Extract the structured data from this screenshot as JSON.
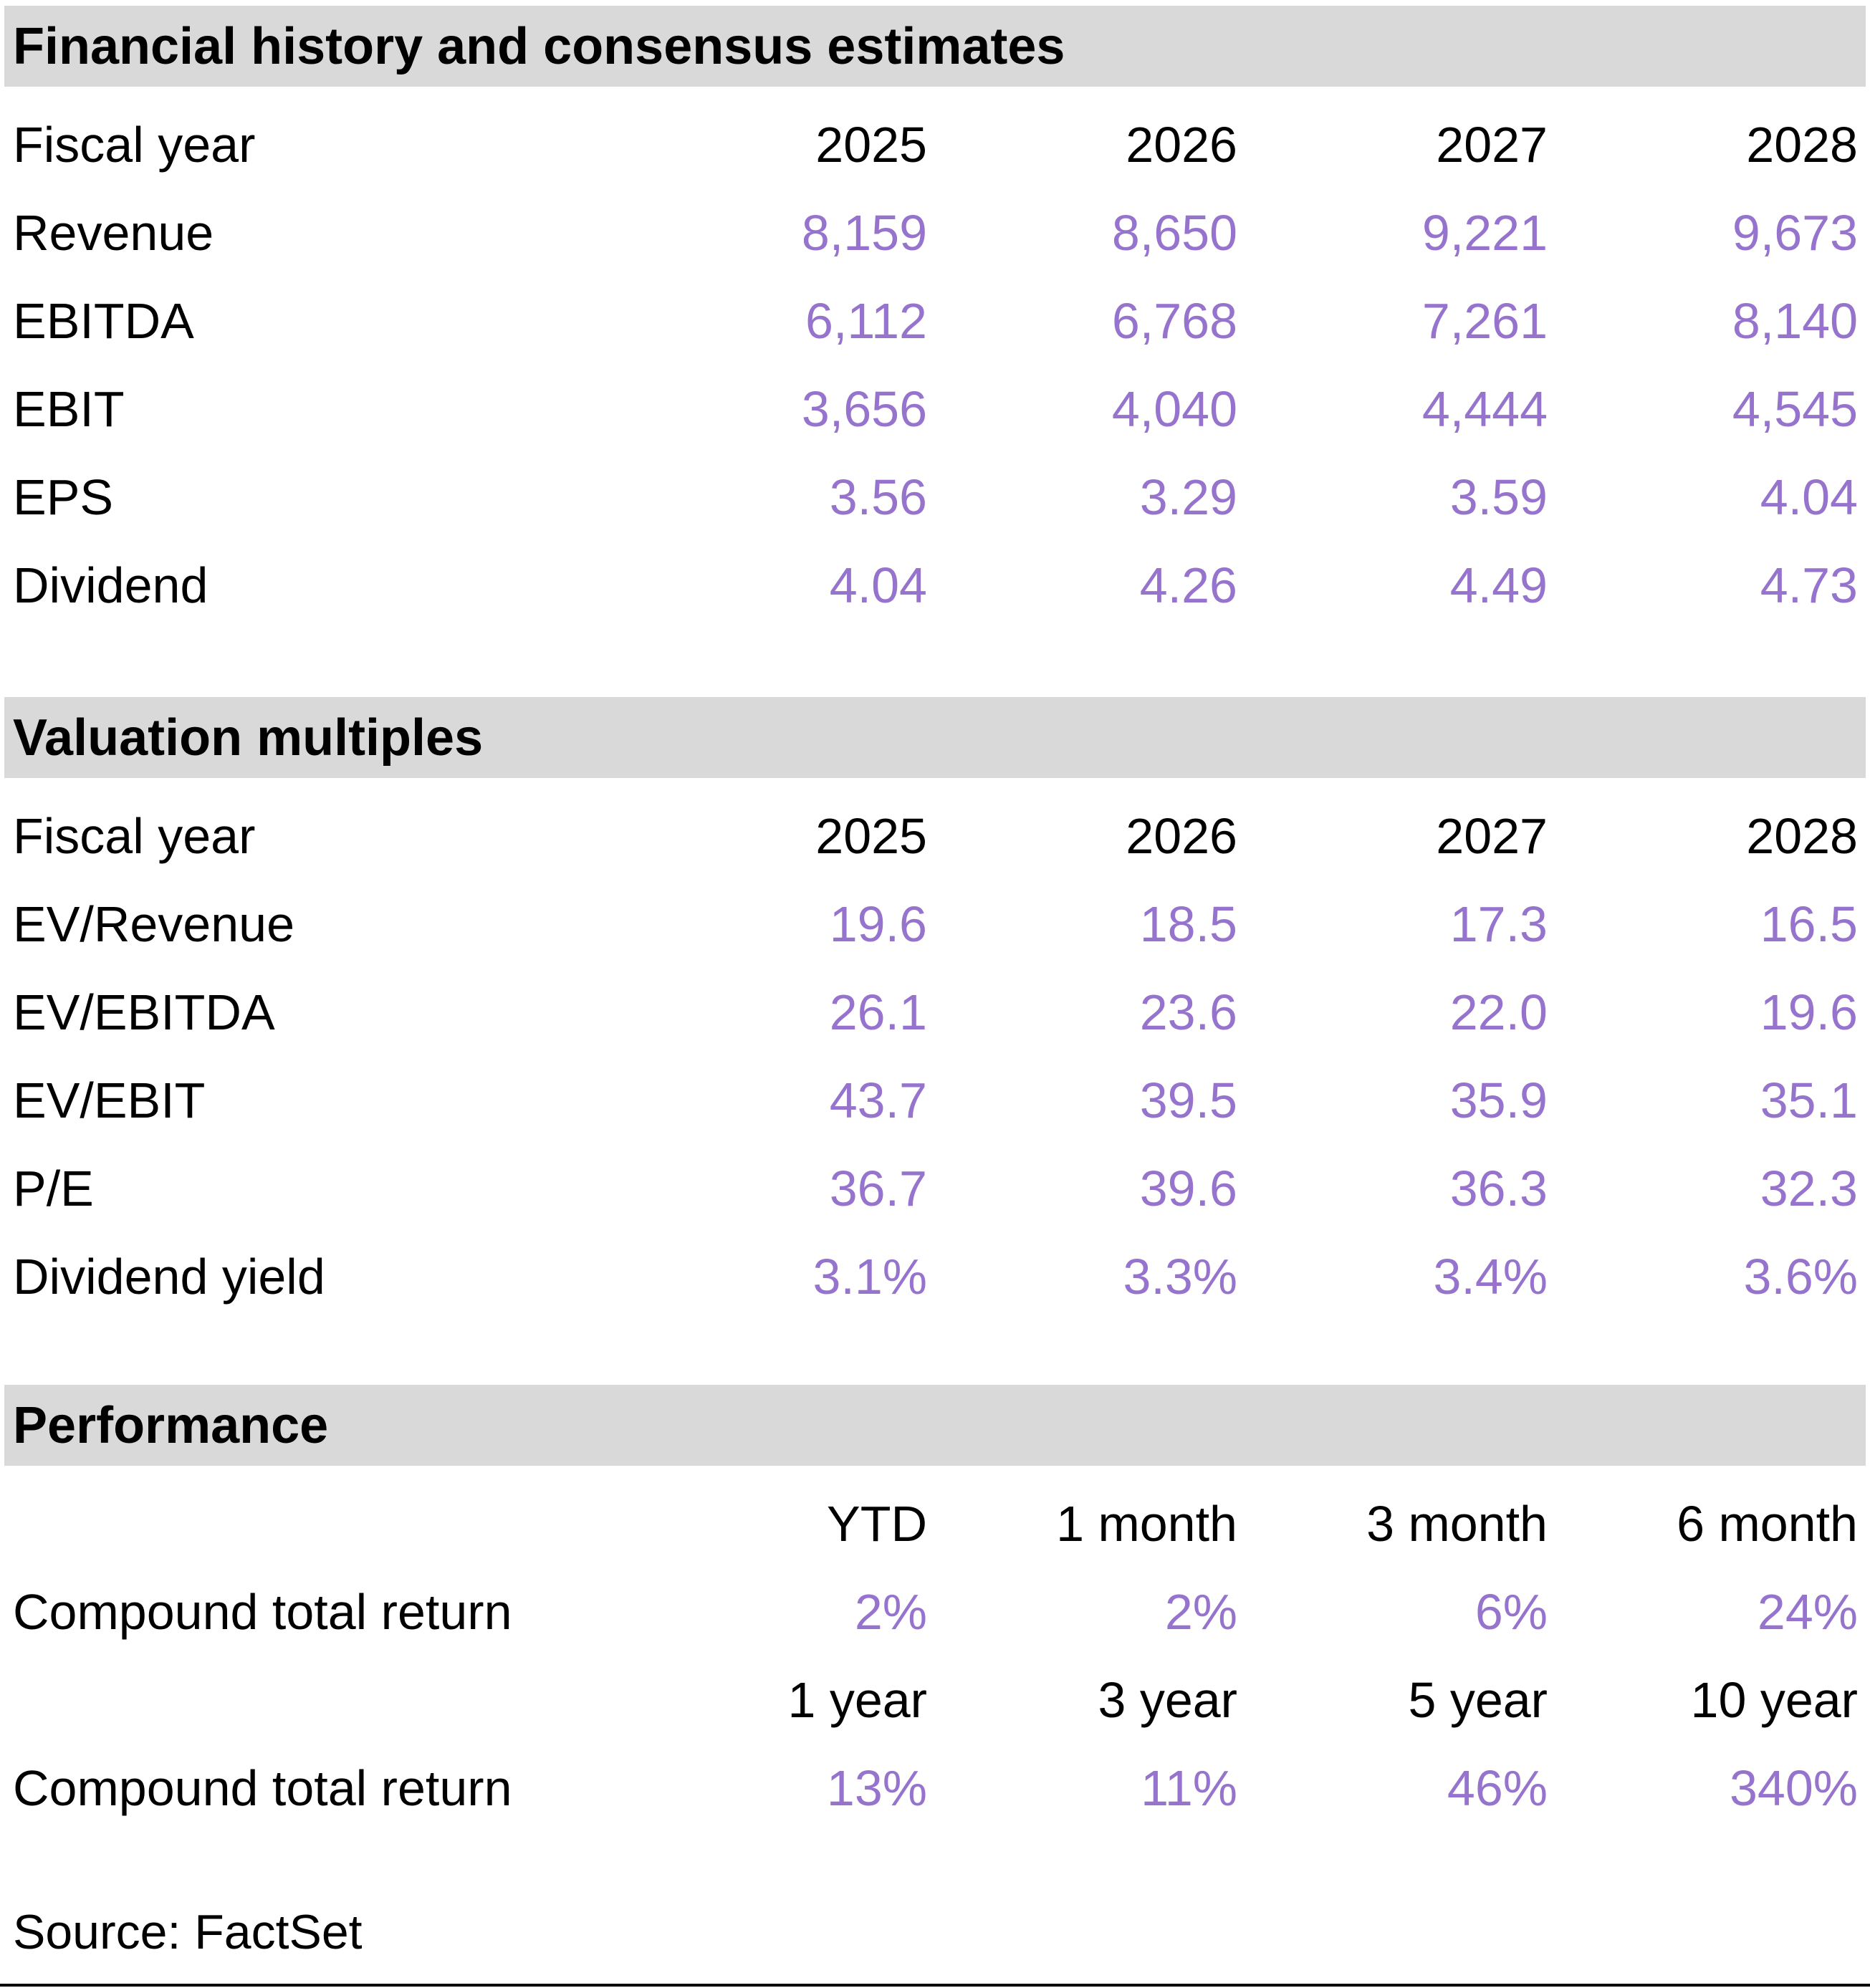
{
  "page": {
    "accent_color": "#9673cd",
    "header_bg_color": "#d9d9d9",
    "text_color": "#000000",
    "background_color": "#ffffff"
  },
  "financial_history": {
    "title": "Financial history and consensus estimates",
    "row_header": "Fiscal year",
    "columns": [
      "2025",
      "2026",
      "2027",
      "2028"
    ],
    "rows": [
      {
        "label": "Revenue",
        "values": [
          "8,159",
          "8,650",
          "9,221",
          "9,673"
        ]
      },
      {
        "label": "EBITDA",
        "values": [
          "6,112",
          "6,768",
          "7,261",
          "8,140"
        ]
      },
      {
        "label": "EBIT",
        "values": [
          "3,656",
          "4,040",
          "4,444",
          "4,545"
        ]
      },
      {
        "label": "EPS",
        "values": [
          "3.56",
          "3.29",
          "3.59",
          "4.04"
        ]
      },
      {
        "label": "Dividend",
        "values": [
          "4.04",
          "4.26",
          "4.49",
          "4.73"
        ]
      }
    ]
  },
  "valuation_multiples": {
    "title": "Valuation multiples",
    "row_header": "Fiscal year",
    "columns": [
      "2025",
      "2026",
      "2027",
      "2028"
    ],
    "rows": [
      {
        "label": "EV/Revenue",
        "values": [
          "19.6",
          "18.5",
          "17.3",
          "16.5"
        ]
      },
      {
        "label": "EV/EBITDA",
        "values": [
          "26.1",
          "23.6",
          "22.0",
          "19.6"
        ]
      },
      {
        "label": "EV/EBIT",
        "values": [
          "43.7",
          "39.5",
          "35.9",
          "35.1"
        ]
      },
      {
        "label": "P/E",
        "values": [
          "36.7",
          "39.6",
          "36.3",
          "32.3"
        ]
      },
      {
        "label": "Dividend yield",
        "values": [
          "3.1%",
          "3.3%",
          "3.4%",
          "3.6%"
        ]
      }
    ]
  },
  "performance": {
    "title": "Performance",
    "groups": [
      {
        "columns": [
          "YTD",
          "1 month",
          "3 month",
          "6 month"
        ],
        "row": {
          "label": "Compound total return",
          "values": [
            "2%",
            "2%",
            "6%",
            "24%"
          ]
        }
      },
      {
        "columns": [
          "1 year",
          "3 year",
          "5 year",
          "10 year"
        ],
        "row": {
          "label": "Compound total return",
          "values": [
            "13%",
            "11%",
            "46%",
            "340%"
          ]
        }
      }
    ]
  },
  "source": {
    "label": "Source: FactSet"
  }
}
